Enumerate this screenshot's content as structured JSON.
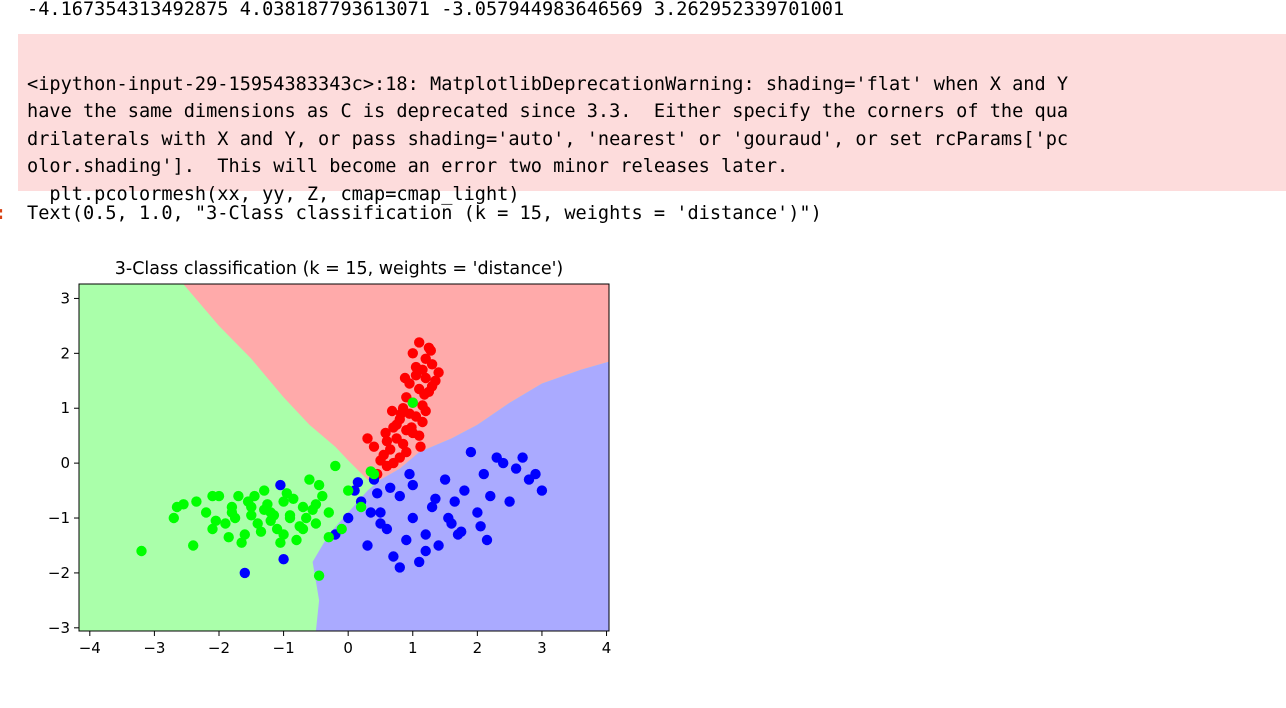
{
  "stdout": {
    "line": "-4.167354313492875 4.038187793613071 -3.057944983646569 3.262952339701001"
  },
  "stderr": {
    "lines": [
      "<ipython-input-29-15954383343c>:18: MatplotlibDeprecationWarning: shading='flat' when X and Y",
      "have the same dimensions as C is deprecated since 3.3.  Either specify the corners of the qua",
      "drilaterals with X and Y, or pass shading='auto', 'nearest' or 'gouraud', or set rcParams['pc",
      "olor.shading'].  This will become an error two minor releases later.",
      "  plt.pcolormesh(xx, yy, Z, cmap=cmap_light)"
    ],
    "background": "#fddcdc"
  },
  "output": {
    "prompt": ":",
    "text": "Text(0.5, 1.0, \"3-Class classification (k = 15, weights = 'distance')\")",
    "prompt_color": "#d84315"
  },
  "chart_data": {
    "type": "scatter",
    "title": "3-Class classification (k = 15, weights = 'distance')",
    "xlabel": "",
    "ylabel": "",
    "xlim": [
      -4.167354313492875,
      4.038187793613071
    ],
    "ylim": [
      -3.057944983646569,
      3.262952339701001
    ],
    "xticks": [
      -4,
      -3,
      -2,
      -1,
      0,
      1,
      2,
      3,
      4
    ],
    "yticks": [
      -3,
      -2,
      -1,
      0,
      1,
      2,
      3
    ],
    "xtick_labels": [
      "−4",
      "−3",
      "−2",
      "−1",
      "0",
      "1",
      "2",
      "3",
      "4"
    ],
    "ytick_labels": [
      "−3",
      "−2",
      "−1",
      "0",
      "1",
      "2",
      "3"
    ],
    "grid": false,
    "regions": [
      {
        "class": "red",
        "color": "#ffaaaa",
        "polygon": [
          [
            -2.55,
            3.26
          ],
          [
            4.04,
            3.26
          ],
          [
            4.04,
            1.85
          ],
          [
            3.6,
            1.7
          ],
          [
            3.0,
            1.45
          ],
          [
            2.5,
            1.1
          ],
          [
            2.0,
            0.7
          ],
          [
            1.6,
            0.45
          ],
          [
            1.1,
            0.2
          ],
          [
            0.8,
            -0.1
          ],
          [
            0.5,
            -0.3
          ],
          [
            0.3,
            -0.3
          ],
          [
            0.0,
            0.05
          ],
          [
            -0.2,
            0.3
          ],
          [
            -0.6,
            0.7
          ],
          [
            -1.0,
            1.2
          ],
          [
            -1.5,
            1.9
          ],
          [
            -2.0,
            2.5
          ]
        ]
      },
      {
        "class": "blue",
        "color": "#aaaaff",
        "polygon": [
          [
            4.04,
            1.85
          ],
          [
            4.04,
            -3.06
          ],
          [
            -0.5,
            -3.06
          ],
          [
            -0.45,
            -2.5
          ],
          [
            -0.55,
            -1.8
          ],
          [
            -0.3,
            -1.3
          ],
          [
            0.0,
            -0.9
          ],
          [
            0.3,
            -0.5
          ],
          [
            0.5,
            -0.3
          ],
          [
            0.8,
            -0.1
          ],
          [
            1.1,
            0.2
          ],
          [
            1.6,
            0.45
          ],
          [
            2.0,
            0.7
          ],
          [
            2.5,
            1.1
          ],
          [
            3.0,
            1.45
          ],
          [
            3.6,
            1.7
          ]
        ]
      }
    ],
    "background_region": {
      "class": "green",
      "color": "#aaffaa"
    },
    "series": [
      {
        "color": "#ff0000",
        "x": [
          1.1,
          1.25,
          1.2,
          1.3,
          1.15,
          1.05,
          1.2,
          1.35,
          0.95,
          1.1,
          1.25,
          0.9,
          1.0,
          1.15,
          0.85,
          1.2,
          0.95,
          1.05,
          0.8,
          1.15,
          0.7,
          0.9,
          1.0,
          0.75,
          0.6,
          0.85,
          1.1,
          0.65,
          0.55,
          0.8,
          0.9,
          0.5,
          0.7,
          1.3,
          1.05,
          0.4,
          0.6,
          0.3,
          0.75,
          1.4,
          1.0,
          1.18,
          0.88,
          1.28,
          0.98,
          0.82,
          1.12,
          0.68,
          0.58,
          0.45
        ],
        "y": [
          2.2,
          2.1,
          1.9,
          1.8,
          1.7,
          1.6,
          1.55,
          1.5,
          1.45,
          1.35,
          1.3,
          1.2,
          1.1,
          1.05,
          1.0,
          0.95,
          0.9,
          0.85,
          0.8,
          0.75,
          0.65,
          0.6,
          0.55,
          0.45,
          0.4,
          0.35,
          0.5,
          0.25,
          0.15,
          0.1,
          0.2,
          0.05,
          0.0,
          1.4,
          1.75,
          0.3,
          -0.05,
          0.45,
          0.7,
          1.65,
          2.0,
          1.25,
          1.55,
          2.05,
          0.65,
          0.9,
          0.3,
          0.95,
          0.55,
          -0.2
        ]
      },
      {
        "color": "#0000ff",
        "x": [
          0.2,
          0.5,
          0.8,
          1.0,
          1.3,
          1.6,
          1.8,
          2.0,
          2.2,
          2.5,
          2.8,
          3.0,
          2.6,
          2.3,
          1.9,
          1.5,
          1.2,
          0.9,
          0.6,
          0.3,
          0.0,
          -0.2,
          0.1,
          0.4,
          0.7,
          1.1,
          1.4,
          1.7,
          2.1,
          2.4,
          2.7,
          0.8,
          1.0,
          1.2,
          0.5,
          -1.6,
          -1.05,
          -1.0,
          1.65,
          2.9,
          2.15,
          1.55,
          0.35,
          0.95,
          1.75,
          0.15,
          0.65,
          1.35,
          2.05,
          0.45
        ],
        "y": [
          -0.7,
          -0.9,
          -0.6,
          -1.0,
          -0.8,
          -1.1,
          -0.5,
          -0.9,
          -0.6,
          -0.7,
          -0.3,
          -0.5,
          -0.1,
          0.1,
          0.2,
          -0.3,
          -1.3,
          -1.4,
          -1.2,
          -1.5,
          -1.0,
          -1.3,
          -0.5,
          -0.3,
          -1.7,
          -1.8,
          -1.5,
          -1.3,
          -0.2,
          0.0,
          0.1,
          -1.9,
          -0.4,
          -1.6,
          -1.1,
          -2.0,
          -0.4,
          -1.75,
          -0.7,
          -0.2,
          -1.4,
          -1.0,
          -0.9,
          -0.2,
          -1.25,
          -0.35,
          -0.45,
          -0.65,
          -1.15,
          -0.55
        ]
      },
      {
        "color": "#00ff00",
        "x": [
          -3.2,
          -2.7,
          -2.55,
          -2.4,
          -2.2,
          -2.1,
          -2.0,
          -1.9,
          -1.8,
          -1.7,
          -1.6,
          -1.5,
          -1.4,
          -1.3,
          -1.2,
          -1.1,
          -1.0,
          -0.9,
          -0.8,
          -0.7,
          -0.6,
          -0.5,
          -0.4,
          -0.3,
          -0.2,
          -0.1,
          0.0,
          0.2,
          0.4,
          -1.75,
          -1.55,
          -1.35,
          -1.15,
          -0.95,
          -0.75,
          -0.55,
          -2.35,
          -2.05,
          -1.85,
          -1.25,
          -1.05,
          -0.85,
          -0.65,
          -0.45,
          -1.45,
          -1.65,
          1.0,
          0.35,
          -0.45,
          -2.65,
          -1.2,
          -0.9,
          -1.0,
          -1.3,
          -0.7,
          -0.5,
          -1.5,
          -1.8,
          -2.1,
          -0.3
        ],
        "y": [
          -1.6,
          -1.0,
          -0.75,
          -1.5,
          -0.9,
          -1.2,
          -0.6,
          -1.1,
          -0.9,
          -0.6,
          -1.3,
          -0.8,
          -1.1,
          -0.5,
          -0.9,
          -1.2,
          -0.7,
          -1.0,
          -1.4,
          -0.8,
          -0.3,
          -1.1,
          -0.6,
          -0.9,
          -0.05,
          -1.2,
          -0.5,
          -0.8,
          -0.2,
          -1.0,
          -0.7,
          -1.25,
          -0.95,
          -0.55,
          -1.15,
          -0.85,
          -0.7,
          -1.05,
          -1.35,
          -0.75,
          -1.45,
          -0.65,
          -1.0,
          -0.4,
          -0.6,
          -1.45,
          1.1,
          -0.15,
          -2.05,
          -0.8,
          -1.05,
          -0.95,
          -1.3,
          -0.85,
          -1.2,
          -0.75,
          -0.95,
          -0.8,
          -0.6,
          -1.35
        ]
      }
    ]
  }
}
